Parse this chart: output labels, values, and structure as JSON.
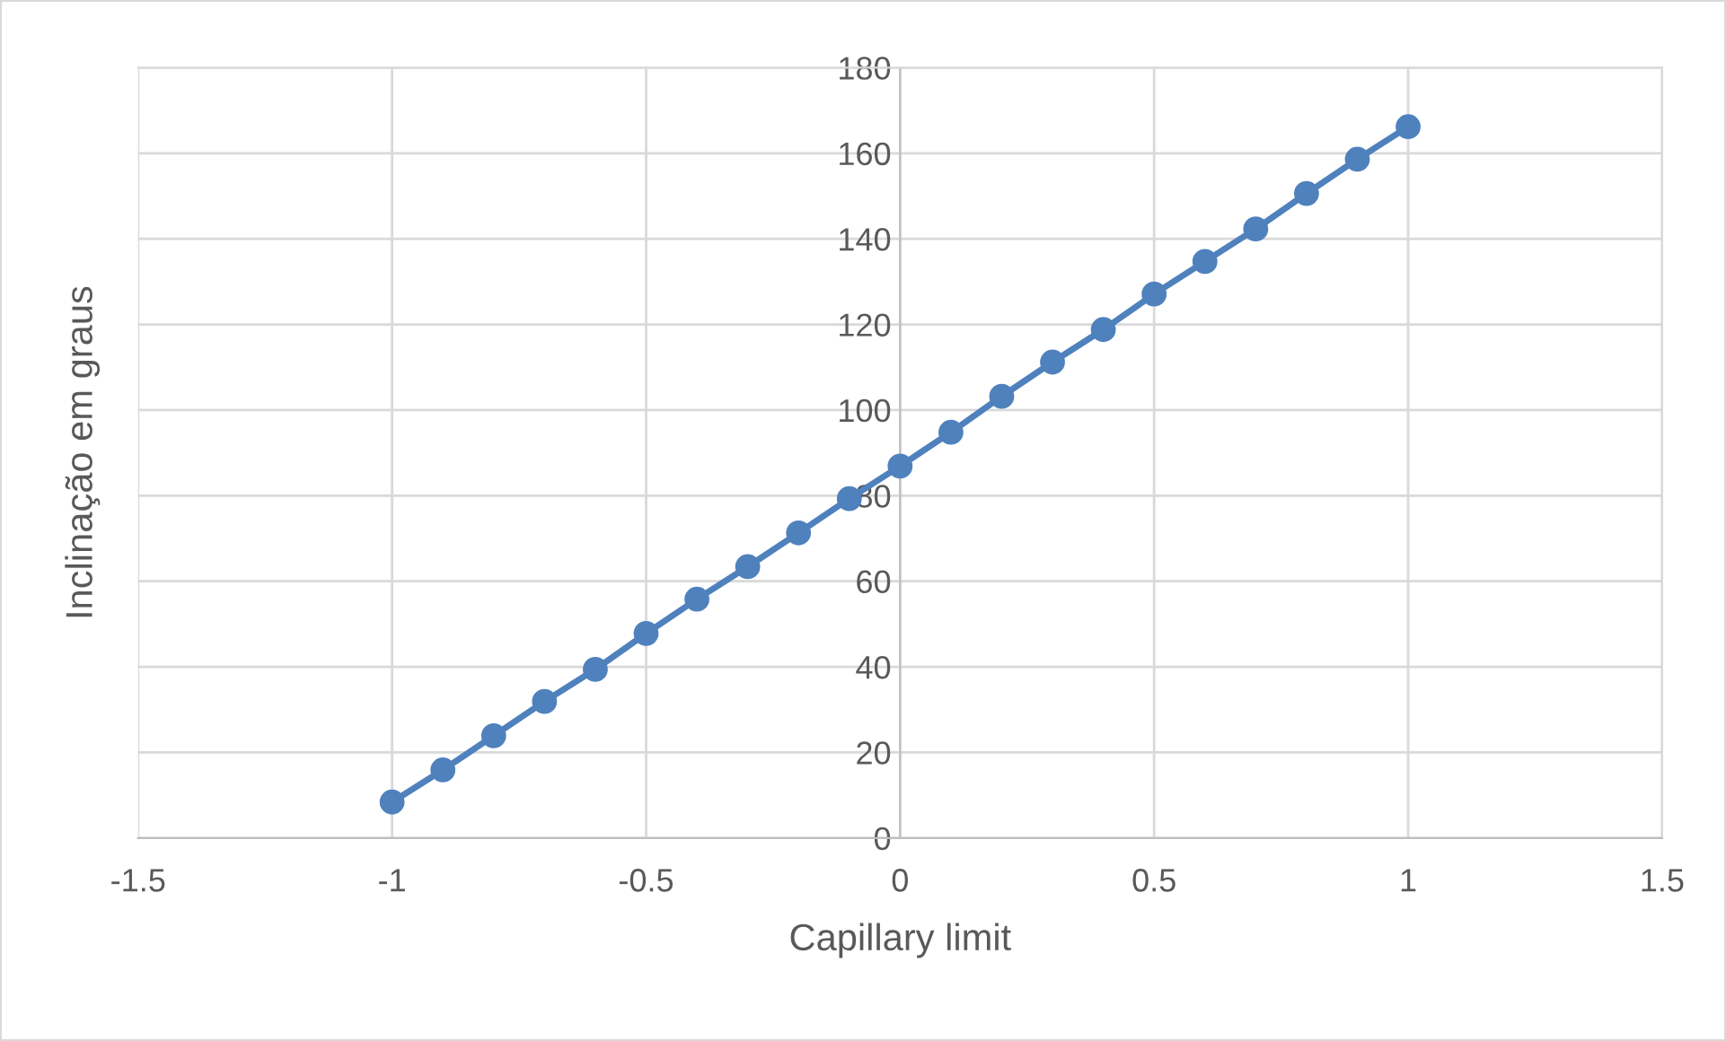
{
  "chart_data": {
    "type": "line",
    "xlabel": "Capillary limit",
    "ylabel": "Inclinação em graus",
    "x": [
      -1,
      -0.9,
      -0.8,
      -0.7,
      -0.6,
      -0.5,
      -0.4,
      -0.3,
      -0.2,
      -0.1,
      0,
      0.1,
      0.2,
      0.3,
      0.4,
      0.5,
      0.6,
      0.7,
      0.8,
      0.9,
      1
    ],
    "series": [
      {
        "color": "#4f81bd",
        "values": [
          8.4,
          15.9,
          23.9,
          31.9,
          39.4,
          47.8,
          55.8,
          63.4,
          71.3,
          79.3,
          86.9,
          94.8,
          103.2,
          111.2,
          118.8,
          127.1,
          134.7,
          142.3,
          150.6,
          158.6,
          166.2
        ]
      }
    ],
    "xlim": [
      -1.5,
      1.5
    ],
    "xticks": [
      -1.5,
      -1,
      -0.5,
      0,
      0.5,
      1,
      1.5
    ],
    "ylim": [
      0,
      180
    ],
    "yticks": [
      0,
      20,
      40,
      60,
      80,
      100,
      120,
      140,
      160,
      180
    ],
    "grid": true,
    "marker": "circle",
    "line_style": "solid"
  }
}
